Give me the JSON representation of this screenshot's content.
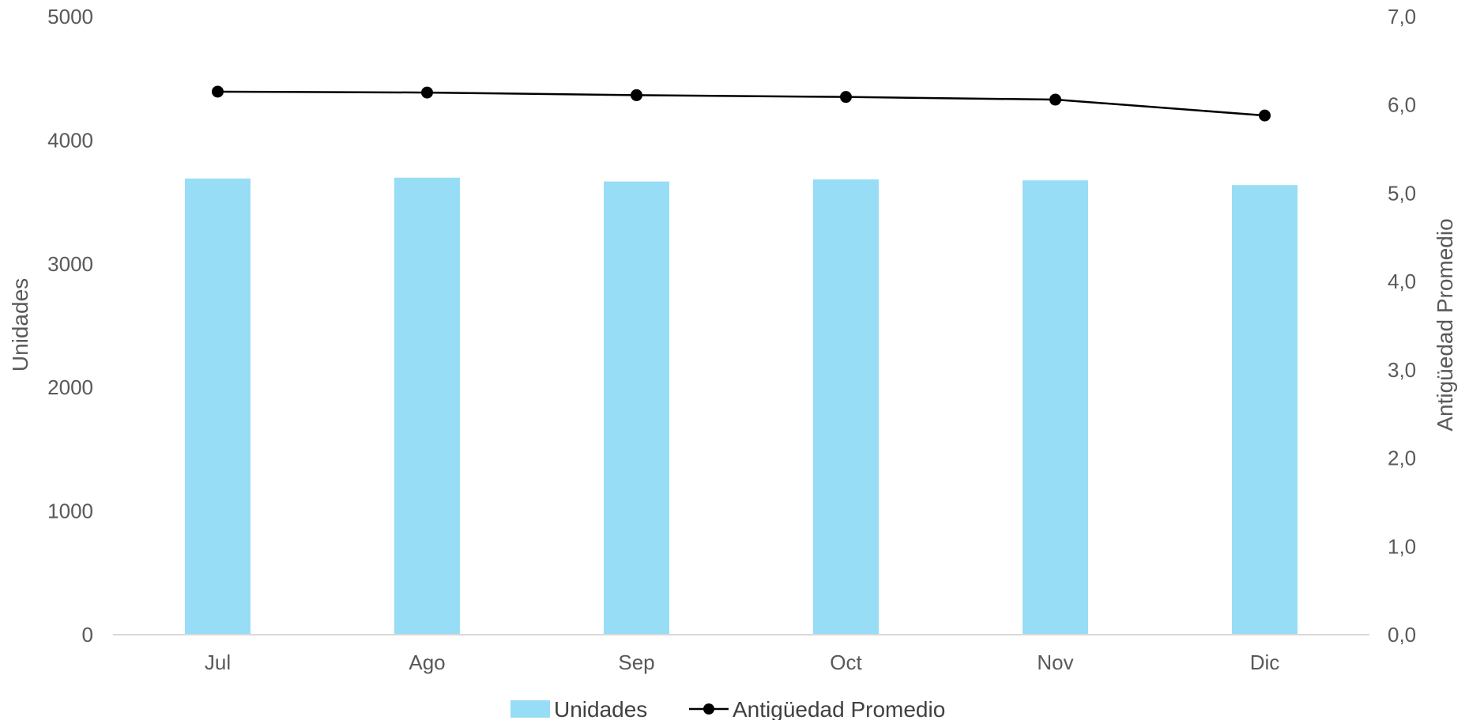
{
  "chart_data": {
    "type": "bar",
    "categories": [
      "Jul",
      "Ago",
      "Sep",
      "Oct",
      "Nov",
      "Dic"
    ],
    "series": [
      {
        "name": "Unidades",
        "type": "bar",
        "axis": "left",
        "color": "#97DDF6",
        "values": [
          3690,
          3697,
          3666,
          3683,
          3675,
          3637
        ]
      },
      {
        "name": "Antigüedad Promedio",
        "type": "line",
        "axis": "right",
        "color": "#000000",
        "values": [
          6.15,
          6.14,
          6.11,
          6.09,
          6.06,
          5.88
        ]
      }
    ],
    "left_axis": {
      "label": "Unidades",
      "ticks": [
        "0",
        "1000",
        "2000",
        "3000",
        "4000",
        "5000"
      ],
      "min": 0,
      "max": 5000
    },
    "right_axis": {
      "label": "Antigüedad Promedio",
      "ticks": [
        "0,0",
        "1,0",
        "2,0",
        "3,0",
        "4,0",
        "5,0",
        "6,0",
        "7,0"
      ],
      "min": 0,
      "max": 7
    },
    "grid": false,
    "legend_position": "bottom"
  }
}
